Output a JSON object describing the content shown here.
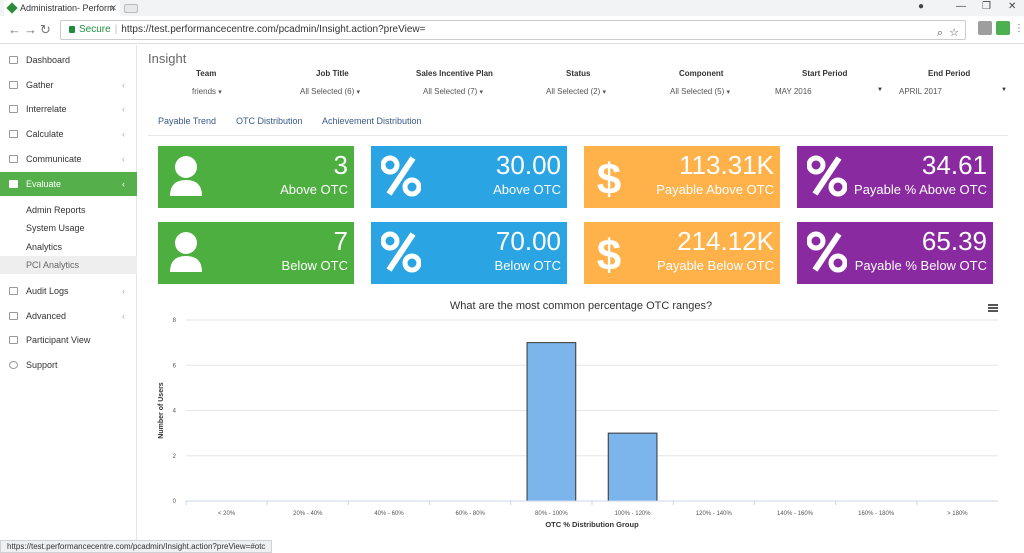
{
  "browser": {
    "tab_title": "Administration- Perform",
    "secure_label": "Secure",
    "url": "https://test.performancecentre.com/pcadmin/Insight.action?preView="
  },
  "sidebar": {
    "items": [
      {
        "label": "Dashboard"
      },
      {
        "label": "Gather"
      },
      {
        "label": "Interrelate"
      },
      {
        "label": "Calculate"
      },
      {
        "label": "Communicate"
      },
      {
        "label": "Evaluate"
      },
      {
        "label": "Audit Logs"
      },
      {
        "label": "Advanced"
      },
      {
        "label": "Participant View"
      },
      {
        "label": "Support"
      }
    ],
    "sub_items": [
      {
        "label": "Admin Reports"
      },
      {
        "label": "System Usage"
      },
      {
        "label": "Analytics"
      },
      {
        "label": "PCI Analytics"
      }
    ]
  },
  "page": {
    "title": "Insight"
  },
  "filters": [
    {
      "label": "Team",
      "value": "friends"
    },
    {
      "label": "Job Title",
      "value": "All Selected (6)"
    },
    {
      "label": "Sales Incentive Plan",
      "value": "All Selected (7)"
    },
    {
      "label": "Status",
      "value": "All Selected (2)"
    },
    {
      "label": "Component",
      "value": "All Selected (5)"
    },
    {
      "label": "Start Period",
      "value": "MAY 2016"
    },
    {
      "label": "End Period",
      "value": "APRIL 2017"
    }
  ],
  "subtabs": [
    "Payable Trend",
    "OTC Distribution",
    "Achievement Distribution"
  ],
  "cards": [
    {
      "value": "3",
      "label": "Above OTC",
      "icon": "user-icon",
      "color": "#4caf3f"
    },
    {
      "value": "30.00",
      "label": "Above OTC",
      "icon": "percent-icon",
      "color": "#2aa4e3"
    },
    {
      "value": "113.31K",
      "label": "Payable Above OTC",
      "icon": "dollar-icon",
      "color": "#ffb14a"
    },
    {
      "value": "34.61",
      "label": "Payable % Above OTC",
      "icon": "percent-icon",
      "color": "#8a2aa0"
    },
    {
      "value": "7",
      "label": "Below OTC",
      "icon": "user-icon",
      "color": "#4caf3f"
    },
    {
      "value": "70.00",
      "label": "Below OTC",
      "icon": "percent-icon",
      "color": "#2aa4e3"
    },
    {
      "value": "214.12K",
      "label": "Payable Below OTC",
      "icon": "dollar-icon",
      "color": "#ffb14a"
    },
    {
      "value": "65.39",
      "label": "Payable % Below OTC",
      "icon": "percent-icon",
      "color": "#8a2aa0"
    }
  ],
  "chart_data": {
    "type": "bar",
    "title": "What are the most common percentage OTC ranges?",
    "xlabel": "OTC % Distribution Group",
    "ylabel": "Number of Users",
    "categories": [
      "< 20%",
      "20% - 40%",
      "40% - 60%",
      "60% - 80%",
      "80% - 100%",
      "100% - 120%",
      "120% - 140%",
      "140% - 160%",
      "160% - 180%",
      "> 180%"
    ],
    "values": [
      0,
      0,
      0,
      0,
      7,
      3,
      0,
      0,
      0,
      0
    ],
    "ylim": [
      0,
      8
    ],
    "yticks": [
      0,
      2,
      4,
      6,
      8
    ],
    "grid": true,
    "bar_color": "#7cb5ec"
  },
  "status_bar": {
    "text": "https://test.performancecentre.com/pcadmin/Insight.action?preView=#otc"
  }
}
